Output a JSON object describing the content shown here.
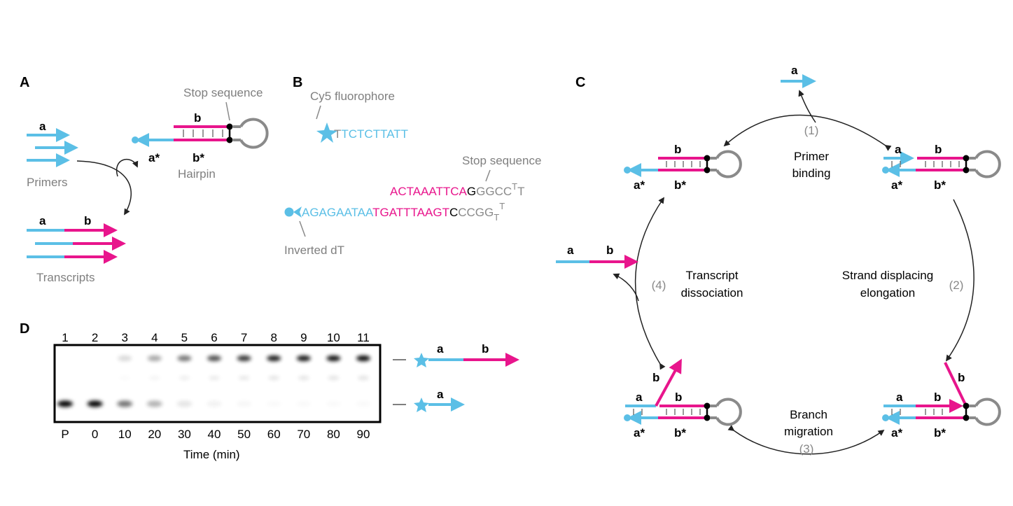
{
  "colors": {
    "blue": "#5bbfe6",
    "magenta": "#e8158c",
    "gray": "#8a8a8a",
    "black": "#000000"
  },
  "panel_a": {
    "letter": "A",
    "stop_sequence": "Stop sequence",
    "strand_a": "a",
    "strand_b": "b",
    "strand_a_star": "a*",
    "strand_b_star": "b*",
    "primers": "Primers",
    "hairpin": "Hairpin",
    "transcripts": "Transcripts"
  },
  "panel_b": {
    "letter": "B",
    "cy5": "Cy5 fluorophore",
    "primer_seq_first": "T",
    "primer_seq_rest": "TCTCTTATT",
    "stop_sequence": "Stop sequence",
    "top_magenta": "ACTAAATTCA",
    "top_black": "G",
    "top_gray": "GGCC",
    "top_sup": "T",
    "top_end": "T",
    "bot_blue": "AGAGAATAA",
    "bot_magenta": "TGATTTAAGT",
    "bot_black": "C",
    "bot_gray": "CCGG",
    "bot_sub": "T",
    "bot_sup": "T",
    "inverted_dt": "Inverted dT"
  },
  "panel_c": {
    "letter": "C",
    "strand_a": "a",
    "strand_b": "b",
    "strand_a_star": "a*",
    "strand_b_star": "b*",
    "step1_num": "(1)",
    "step1_l1": "Primer",
    "step1_l2": "binding",
    "step2_num": "(2)",
    "step2_l1": "Strand displacing",
    "step2_l2": "elongation",
    "step3_num": "(3)",
    "step3_l1": "Branch",
    "step3_l2": "migration",
    "step4_num": "(4)",
    "step4_l1": "Transcript",
    "step4_l2": "dissociation"
  },
  "panel_d": {
    "letter": "D",
    "lanes": [
      "1",
      "2",
      "3",
      "4",
      "5",
      "6",
      "7",
      "8",
      "9",
      "10",
      "11"
    ],
    "times": [
      "P",
      "0",
      "10",
      "20",
      "30",
      "40",
      "50",
      "60",
      "70",
      "80",
      "90"
    ],
    "xlabel": "Time (min)",
    "product_band_intensity": [
      0,
      0,
      0.15,
      0.35,
      0.55,
      0.7,
      0.8,
      0.9,
      0.92,
      0.95,
      0.98
    ],
    "primer_band_intensity": [
      1,
      1,
      0.55,
      0.3,
      0.1,
      0.05,
      0.03,
      0.02,
      0.02,
      0.02,
      0.02
    ],
    "strand_a": "a",
    "strand_b": "b"
  }
}
